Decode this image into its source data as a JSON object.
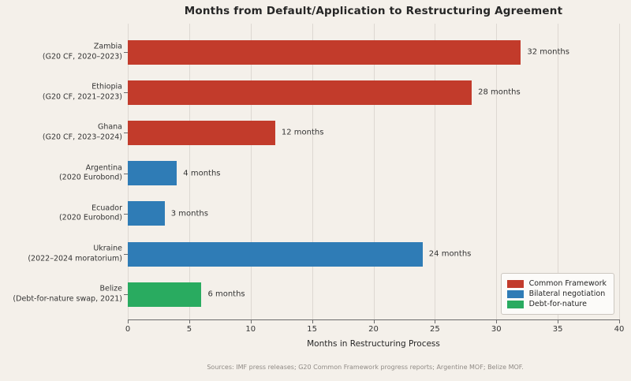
{
  "chart_data": {
    "type": "bar",
    "orientation": "horizontal",
    "title": "Months from Default/Application to Restructuring Agreement",
    "xlabel": "Months in Restructuring Process",
    "ylabel": "",
    "xlim": [
      0,
      40
    ],
    "xticks": [
      0,
      5,
      10,
      15,
      20,
      25,
      30,
      35,
      40
    ],
    "grid": true,
    "legend_position": "lower right",
    "source_note": "Sources: IMF press releases; G20 Common Framework progress reports; Argentine MOF; Belize MOF.",
    "legend": [
      {
        "name": "Common Framework",
        "color": "#c23b2b"
      },
      {
        "name": "Bilateral negotiation",
        "color": "#2f7cb6"
      },
      {
        "name": "Debt-for-nature",
        "color": "#29ab60"
      }
    ],
    "rows": [
      {
        "label": "Zambia",
        "sublabel": "(G20 CF, 2020–2023)",
        "value": 32,
        "value_label": "32 months",
        "series": "Common Framework"
      },
      {
        "label": "Ethiopia",
        "sublabel": "(G20 CF, 2021–2023)",
        "value": 28,
        "value_label": "28 months",
        "series": "Common Framework"
      },
      {
        "label": "Ghana",
        "sublabel": "(G20 CF, 2023–2024)",
        "value": 12,
        "value_label": "12 months",
        "series": "Common Framework"
      },
      {
        "label": "Argentina",
        "sublabel": "(2020 Eurobond)",
        "value": 4,
        "value_label": "4 months",
        "series": "Bilateral negotiation"
      },
      {
        "label": "Ecuador",
        "sublabel": "(2020 Eurobond)",
        "value": 3,
        "value_label": "3 months",
        "series": "Bilateral negotiation"
      },
      {
        "label": "Ukraine",
        "sublabel": "(2022–2024 moratorium)",
        "value": 24,
        "value_label": "24 months",
        "series": "Bilateral negotiation"
      },
      {
        "label": "Belize",
        "sublabel": "(Debt-for-nature swap, 2021)",
        "value": 6,
        "value_label": "6 months",
        "series": "Debt-for-nature"
      }
    ],
    "colors": {
      "background": "#f4f0ea",
      "grid": "#ddd8d2",
      "axis": "#6b6b6b",
      "text": "#333333",
      "title": "#262626",
      "source": "#8f8a85"
    }
  }
}
